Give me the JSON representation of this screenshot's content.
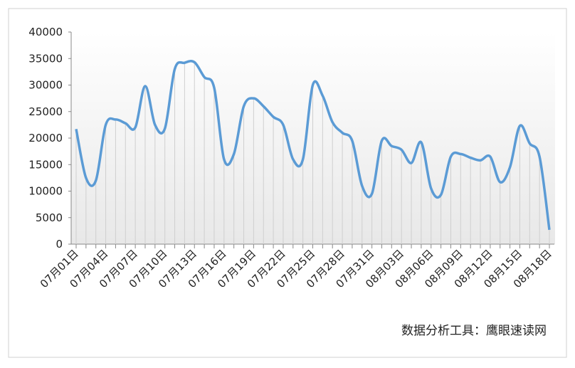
{
  "chart_data": {
    "type": "line",
    "categories": [
      "07月01日",
      null,
      null,
      "07月04日",
      null,
      null,
      "07月07日",
      null,
      null,
      "07月10日",
      null,
      null,
      "07月13日",
      null,
      null,
      "07月16日",
      null,
      null,
      "07月19日",
      null,
      null,
      "07月22日",
      null,
      null,
      "07月25日",
      null,
      null,
      "07月28日",
      null,
      null,
      "07月31日",
      null,
      null,
      "08月03日",
      null,
      null,
      "08月06日",
      null,
      null,
      "08月09日",
      null,
      null,
      "08月12日",
      null,
      null,
      "08月15日",
      null,
      null,
      "08月18日"
    ],
    "values": [
      21700,
      12500,
      12000,
      22500,
      23500,
      22800,
      22000,
      29800,
      22500,
      21800,
      33000,
      34200,
      34300,
      31500,
      29500,
      16000,
      17000,
      26000,
      27500,
      26000,
      24000,
      22500,
      16000,
      16000,
      30000,
      28000,
      23000,
      21000,
      19500,
      11000,
      9500,
      19500,
      18500,
      17800,
      15300,
      19200,
      10500,
      9300,
      16500,
      17000,
      16300,
      15800,
      16500,
      11700,
      14500,
      22300,
      19000,
      16500,
      2700
    ],
    "color": "#5b9bd5",
    "ylim": [
      0,
      40000
    ],
    "yticks": [
      0,
      5000,
      10000,
      15000,
      20000,
      25000,
      30000,
      35000,
      40000
    ],
    "annotation": "数据分析工具：鹰眼速读网"
  }
}
